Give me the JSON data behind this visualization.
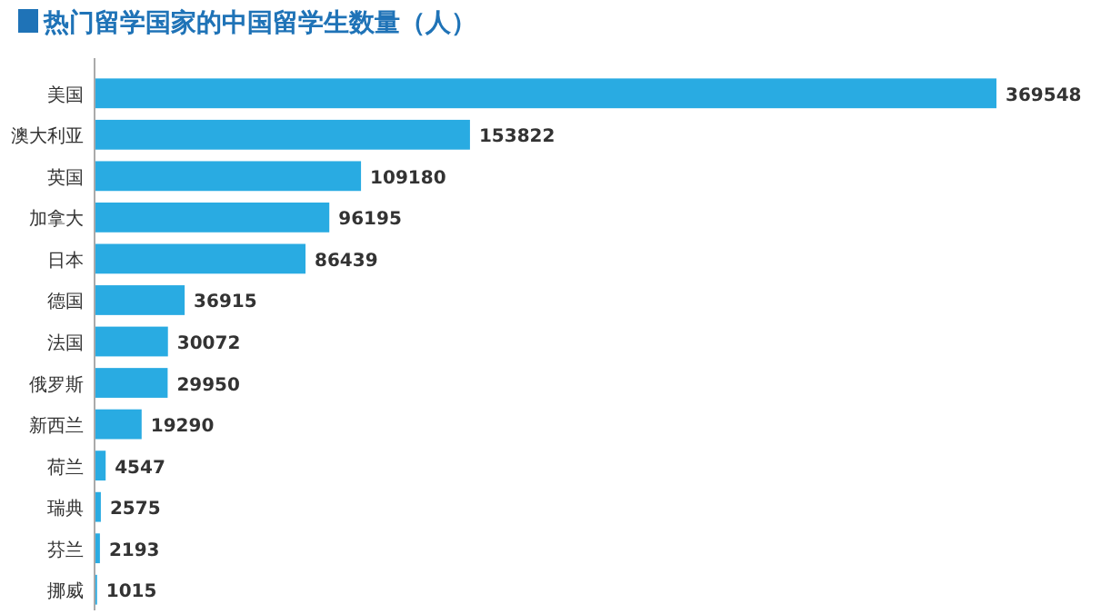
{
  "chart_data": {
    "type": "bar",
    "orientation": "horizontal",
    "title": "热门留学国家的中国留学生数量（人）",
    "categories": [
      "美国",
      "澳大利亚",
      "英国",
      "加拿大",
      "日本",
      "德国",
      "法国",
      "俄罗斯",
      "新西兰",
      "荷兰",
      "瑞典",
      "芬兰",
      "挪威"
    ],
    "values": [
      369548,
      153822,
      109180,
      96195,
      86439,
      36915,
      30072,
      29950,
      19290,
      4547,
      2575,
      2193,
      1015
    ],
    "color": "#29abe2",
    "data_labels": true
  }
}
